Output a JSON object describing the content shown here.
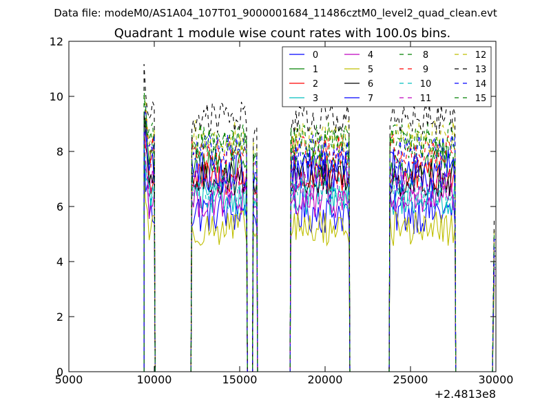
{
  "figure": {
    "suptitle": "Data file: modeM0/AS1A04_107T01_9000001684_11486cztM0_level2_quad_clean.evt",
    "title": "Quadrant 1 module wise count rates with 100.0s bins.",
    "offset_label": "+2.4813e8"
  },
  "chart_data": {
    "type": "line",
    "title": "Quadrant 1 module wise count rates with 100.0s bins.",
    "xlabel": "",
    "ylabel": "",
    "xlim": [
      5000,
      30000
    ],
    "ylim": [
      0,
      12
    ],
    "x_offset": 248130000,
    "xticks": [
      5000,
      10000,
      15000,
      20000,
      25000,
      30000
    ],
    "xtick_labels": [
      "5000",
      "10000",
      "15000",
      "20000",
      "25000",
      "30000"
    ],
    "yticks": [
      0,
      2,
      4,
      6,
      8,
      10,
      12
    ],
    "ytick_labels": [
      "0",
      "2",
      "4",
      "6",
      "8",
      "10",
      "12"
    ],
    "grid": false,
    "legend_position": "top-right",
    "legend_columns": 4,
    "bin_size_s": 100,
    "segments": [
      [
        9400,
        10000
      ],
      [
        12200,
        15400
      ],
      [
        15800,
        16000
      ],
      [
        18000,
        21400
      ],
      [
        23800,
        27600
      ],
      [
        29800,
        30000
      ]
    ],
    "series": [
      {
        "name": "0",
        "color": "#0000ff",
        "dash": "solid",
        "level": 5.8,
        "noise": 0.5
      },
      {
        "name": "1",
        "color": "#008000",
        "dash": "solid",
        "level": 7.5,
        "noise": 0.4
      },
      {
        "name": "2",
        "color": "#ff0000",
        "dash": "solid",
        "level": 7.0,
        "noise": 0.4
      },
      {
        "name": "3",
        "color": "#00bfbf",
        "dash": "solid",
        "level": 6.3,
        "noise": 0.4
      },
      {
        "name": "4",
        "color": "#bf00bf",
        "dash": "solid",
        "level": 6.2,
        "noise": 0.4
      },
      {
        "name": "5",
        "color": "#bfbf00",
        "dash": "solid",
        "level": 5.2,
        "noise": 0.4
      },
      {
        "name": "6",
        "color": "#000000",
        "dash": "solid",
        "level": 7.0,
        "noise": 0.4
      },
      {
        "name": "7",
        "color": "#0000ff",
        "dash": "solid",
        "level": 7.3,
        "noise": 0.5
      },
      {
        "name": "8",
        "color": "#008000",
        "dash": "dashed",
        "level": 8.2,
        "noise": 0.4
      },
      {
        "name": "9",
        "color": "#ff0000",
        "dash": "dashed",
        "level": 8.0,
        "noise": 0.4
      },
      {
        "name": "10",
        "color": "#00bfbf",
        "dash": "dashed",
        "level": 6.5,
        "noise": 0.4
      },
      {
        "name": "11",
        "color": "#bf00bf",
        "dash": "dashed",
        "level": 6.8,
        "noise": 0.4
      },
      {
        "name": "12",
        "color": "#bfbf00",
        "dash": "dashed",
        "level": 8.5,
        "noise": 0.4
      },
      {
        "name": "13",
        "color": "#000000",
        "dash": "dashed",
        "level": 9.2,
        "noise": 0.4
      },
      {
        "name": "14",
        "color": "#0000ff",
        "dash": "dashed",
        "level": 8.0,
        "noise": 0.4
      },
      {
        "name": "15",
        "color": "#008000",
        "dash": "dashed",
        "level": 8.4,
        "noise": 0.4
      }
    ]
  }
}
